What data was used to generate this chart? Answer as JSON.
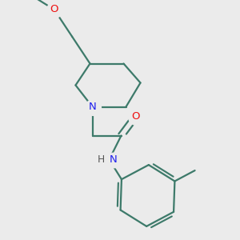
{
  "bg": "#ebebeb",
  "bc": "#3d7a6a",
  "Nc": "#2020ee",
  "Oc": "#ee1010",
  "lw": 1.6,
  "fs": 9.5,
  "figsize": [
    3.0,
    3.0
  ],
  "dpi": 100,
  "xlim": [
    0,
    10
  ],
  "ylim": [
    0,
    10
  ]
}
